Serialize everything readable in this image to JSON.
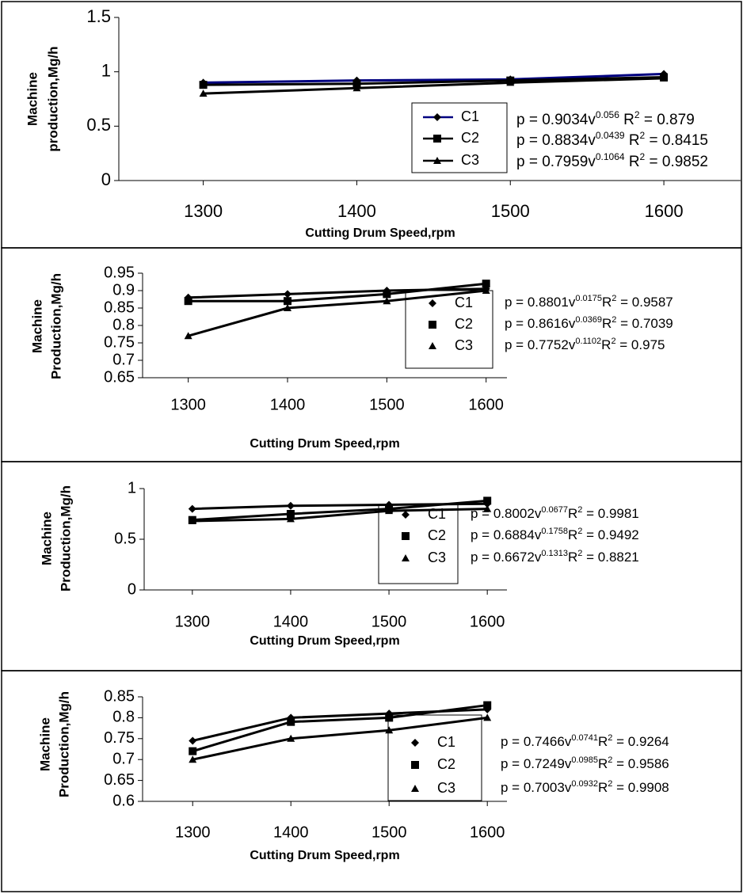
{
  "chart_data": [
    {
      "type": "line",
      "x": [
        1300,
        1400,
        1500,
        1600
      ],
      "xlim": [
        1245,
        1650
      ],
      "xticks": [
        1300,
        1400,
        1500,
        1600
      ],
      "ylim": [
        0,
        1.5
      ],
      "yticks": [
        0,
        0.5,
        1,
        1.5
      ],
      "xlabel": "Cutting Drum Speed,rpm",
      "ylabel": [
        "Machine",
        "production,Mg/h"
      ],
      "legend_lines": true,
      "series": [
        {
          "name": "C1",
          "color": "#000080",
          "marker": "diamond",
          "values": [
            0.9,
            0.92,
            0.93,
            0.98
          ],
          "equation": [
            {
              "text": "p = 0.9034v"
            },
            {
              "text": "0.056",
              "sup": true
            },
            {
              "text": " R"
            },
            {
              "text": "2",
              "sup": true
            },
            {
              "text": " = 0.879"
            }
          ]
        },
        {
          "name": "C2",
          "color": "#000000",
          "marker": "square",
          "values": [
            0.88,
            0.89,
            0.92,
            0.95
          ],
          "equation": [
            {
              "text": "p = 0.8834v"
            },
            {
              "text": "0.0439",
              "sup": true
            },
            {
              "text": " R"
            },
            {
              "text": "2",
              "sup": true
            },
            {
              "text": " = 0.8415"
            }
          ]
        },
        {
          "name": "C3",
          "color": "#000000",
          "marker": "triangle",
          "values": [
            0.8,
            0.85,
            0.9,
            0.94
          ],
          "equation": [
            {
              "text": "p = 0.7959v"
            },
            {
              "text": "0.1064",
              "sup": true
            },
            {
              "text": " R"
            },
            {
              "text": "2",
              "sup": true
            },
            {
              "text": " = 0.9852"
            }
          ]
        }
      ]
    },
    {
      "type": "line",
      "x": [
        1300,
        1400,
        1500,
        1600
      ],
      "xlim": [
        1254,
        1621
      ],
      "xticks": [
        1300,
        1400,
        1500,
        1600
      ],
      "ylim": [
        0.65,
        0.95
      ],
      "yticks": [
        0.65,
        0.7,
        0.75,
        0.8,
        0.85,
        0.9,
        0.95
      ],
      "xlabel": "Cutting Drum Speed,rpm",
      "ylabel": [
        "Machine",
        "Production,Mg/h"
      ],
      "legend_lines": false,
      "series": [
        {
          "name": "C1",
          "color": "#000000",
          "marker": "diamond",
          "values": [
            0.88,
            0.89,
            0.9,
            0.905
          ],
          "equation": [
            {
              "text": "p = 0.8801v"
            },
            {
              "text": "0.0175",
              "sup": true
            },
            {
              "text": "R"
            },
            {
              "text": "2",
              "sup": true
            },
            {
              "text": " = 0.9587"
            }
          ]
        },
        {
          "name": "C2",
          "color": "#000000",
          "marker": "square",
          "values": [
            0.87,
            0.87,
            0.89,
            0.92
          ],
          "equation": [
            {
              "text": "p = 0.8616v"
            },
            {
              "text": "0.0369",
              "sup": true
            },
            {
              "text": "R"
            },
            {
              "text": "2",
              "sup": true
            },
            {
              "text": " = 0.7039"
            }
          ]
        },
        {
          "name": "C3",
          "color": "#000000",
          "marker": "triangle",
          "values": [
            0.77,
            0.85,
            0.87,
            0.9
          ],
          "equation": [
            {
              "text": "p = 0.7752v"
            },
            {
              "text": "0.1102",
              "sup": true
            },
            {
              "text": "R"
            },
            {
              "text": "2",
              "sup": true
            },
            {
              "text": " = 0.975"
            }
          ]
        }
      ]
    },
    {
      "type": "line",
      "x": [
        1300,
        1400,
        1500,
        1600
      ],
      "xlim": [
        1251,
        1620
      ],
      "xticks": [
        1300,
        1400,
        1500,
        1600
      ],
      "ylim": [
        0,
        1
      ],
      "yticks": [
        0,
        0.5,
        1
      ],
      "xlabel": "Cutting Drum Speed,rpm",
      "ylabel": [
        "Machine",
        "Production,Mg/h"
      ],
      "legend_lines": false,
      "series": [
        {
          "name": "C1",
          "color": "#000000",
          "marker": "diamond",
          "values": [
            0.8,
            0.83,
            0.84,
            0.85
          ],
          "equation": [
            {
              "text": "p = 0.8002v"
            },
            {
              "text": "0.0677",
              "sup": true
            },
            {
              "text": "R"
            },
            {
              "text": "2",
              "sup": true
            },
            {
              "text": " = 0.9981"
            }
          ]
        },
        {
          "name": "C2",
          "color": "#000000",
          "marker": "square",
          "values": [
            0.69,
            0.75,
            0.8,
            0.88
          ],
          "equation": [
            {
              "text": "p = 0.6884v"
            },
            {
              "text": "0.1758",
              "sup": true
            },
            {
              "text": "R"
            },
            {
              "text": "2",
              "sup": true
            },
            {
              "text": " = 0.9492"
            }
          ]
        },
        {
          "name": "C3",
          "color": "#000000",
          "marker": "triangle",
          "values": [
            0.68,
            0.7,
            0.78,
            0.8
          ],
          "equation": [
            {
              "text": "p = 0.6672v"
            },
            {
              "text": "0.1313",
              "sup": true
            },
            {
              "text": "R"
            },
            {
              "text": "2",
              "sup": true
            },
            {
              "text": " = 0.8821"
            }
          ]
        }
      ]
    },
    {
      "type": "line",
      "x": [
        1300,
        1400,
        1500,
        1600
      ],
      "xlim": [
        1249,
        1620
      ],
      "xticks": [
        1300,
        1400,
        1500,
        1600
      ],
      "ylim": [
        0.6,
        0.85
      ],
      "yticks": [
        0.6,
        0.65,
        0.7,
        0.75,
        0.8,
        0.85
      ],
      "xlabel": "Cutting Drum Speed,rpm",
      "ylabel": [
        "Machine",
        "Production,Mg/h"
      ],
      "legend_lines": false,
      "series": [
        {
          "name": "C1",
          "color": "#000000",
          "marker": "diamond",
          "values": [
            0.745,
            0.8,
            0.81,
            0.82
          ],
          "equation": [
            {
              "text": "p = 0.7466v"
            },
            {
              "text": "0.0741",
              "sup": true
            },
            {
              "text": "R"
            },
            {
              "text": "2",
              "sup": true
            },
            {
              "text": " = 0.9264"
            }
          ]
        },
        {
          "name": "C2",
          "color": "#000000",
          "marker": "square",
          "values": [
            0.72,
            0.79,
            0.8,
            0.83
          ],
          "equation": [
            {
              "text": "p = 0.7249v"
            },
            {
              "text": "0.0985",
              "sup": true
            },
            {
              "text": "R"
            },
            {
              "text": "2",
              "sup": true
            },
            {
              "text": " = 0.9586"
            }
          ]
        },
        {
          "name": "C3",
          "color": "#000000",
          "marker": "triangle",
          "values": [
            0.7,
            0.75,
            0.77,
            0.8
          ],
          "equation": [
            {
              "text": "p = 0.7003v"
            },
            {
              "text": "0.0932",
              "sup": true
            },
            {
              "text": "R"
            },
            {
              "text": "2",
              "sup": true
            },
            {
              "text": " = 0.9908"
            }
          ]
        }
      ]
    }
  ]
}
